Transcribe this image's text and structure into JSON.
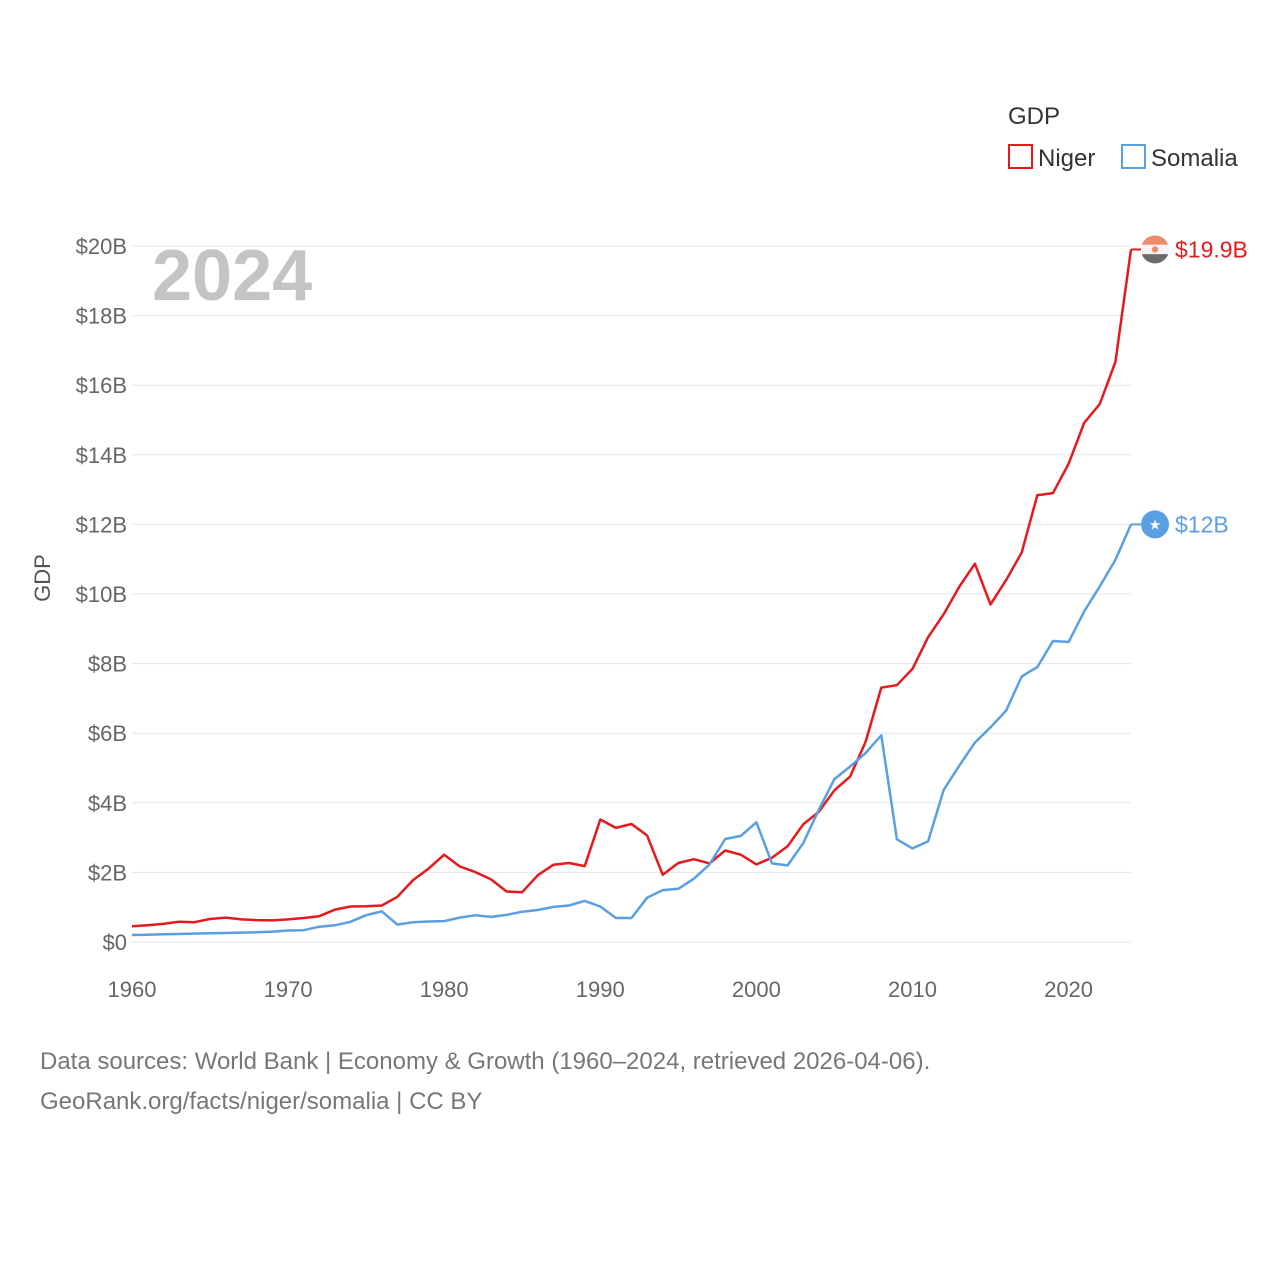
{
  "chart_data": {
    "type": "line",
    "title": "GDP",
    "year_label": "2024",
    "ylabel": "GDP",
    "xlabel": "",
    "xlim": [
      1960,
      2024
    ],
    "ylim": [
      0,
      20
    ],
    "unit": "billion USD",
    "x_ticks": [
      "1960",
      "1970",
      "1980",
      "1990",
      "2000",
      "2010",
      "2020"
    ],
    "y_ticks": [
      "$0",
      "$2B",
      "$4B",
      "$6B",
      "$8B",
      "$10B",
      "$12B",
      "$14B",
      "$16B",
      "$18B",
      "$20B"
    ],
    "legend_position": "top-right",
    "x": [
      1960,
      1961,
      1962,
      1963,
      1964,
      1965,
      1966,
      1967,
      1968,
      1969,
      1970,
      1971,
      1972,
      1973,
      1974,
      1975,
      1976,
      1977,
      1978,
      1979,
      1980,
      1981,
      1982,
      1983,
      1984,
      1985,
      1986,
      1987,
      1988,
      1989,
      1990,
      1991,
      1992,
      1993,
      1994,
      1995,
      1996,
      1997,
      1998,
      1999,
      2000,
      2001,
      2002,
      2003,
      2004,
      2005,
      2006,
      2007,
      2008,
      2009,
      2010,
      2011,
      2012,
      2013,
      2014,
      2015,
      2016,
      2017,
      2018,
      2019,
      2020,
      2021,
      2022,
      2023,
      2024
    ],
    "series": [
      {
        "name": "Niger",
        "color": "#e41a1c",
        "end_label": "$19.9B",
        "flag": "niger-flag",
        "values": [
          0.45,
          0.48,
          0.52,
          0.58,
          0.57,
          0.66,
          0.7,
          0.65,
          0.63,
          0.62,
          0.65,
          0.69,
          0.74,
          0.93,
          1.02,
          1.03,
          1.05,
          1.3,
          1.78,
          2.11,
          2.51,
          2.17,
          2.01,
          1.8,
          1.45,
          1.43,
          1.92,
          2.22,
          2.27,
          2.18,
          3.52,
          3.28,
          3.39,
          3.06,
          1.93,
          2.27,
          2.38,
          2.26,
          2.63,
          2.51,
          2.23,
          2.42,
          2.75,
          3.38,
          3.74,
          4.36,
          4.75,
          5.75,
          7.31,
          7.38,
          7.85,
          8.76,
          9.42,
          10.21,
          10.87,
          9.7,
          10.4,
          11.19,
          12.84,
          12.9,
          13.74,
          14.92,
          15.46,
          16.67,
          19.9
        ]
      },
      {
        "name": "Somalia",
        "color": "#5b9fe3",
        "end_label": "$12B",
        "flag": "somalia-flag",
        "values": [
          0.2,
          0.21,
          0.22,
          0.23,
          0.24,
          0.25,
          0.26,
          0.27,
          0.28,
          0.3,
          0.33,
          0.34,
          0.44,
          0.48,
          0.58,
          0.77,
          0.88,
          0.5,
          0.57,
          0.59,
          0.6,
          0.7,
          0.77,
          0.72,
          0.78,
          0.87,
          0.92,
          1.01,
          1.05,
          1.18,
          1.02,
          0.69,
          0.69,
          1.27,
          1.49,
          1.53,
          1.82,
          2.23,
          2.96,
          3.05,
          3.44,
          2.26,
          2.2,
          2.84,
          3.8,
          4.68,
          5.04,
          5.43,
          5.94,
          2.95,
          2.69,
          2.89,
          4.37,
          5.07,
          5.73,
          6.17,
          6.65,
          7.63,
          7.9,
          8.65,
          8.62,
          9.5,
          10.22,
          10.98,
          12.0
        ]
      }
    ]
  },
  "footer": {
    "line1": "Data sources: World Bank | Economy & Growth (1960–2024, retrieved 2026-04-06).",
    "line2": "GeoRank.org/facts/niger/somalia | CC BY"
  }
}
